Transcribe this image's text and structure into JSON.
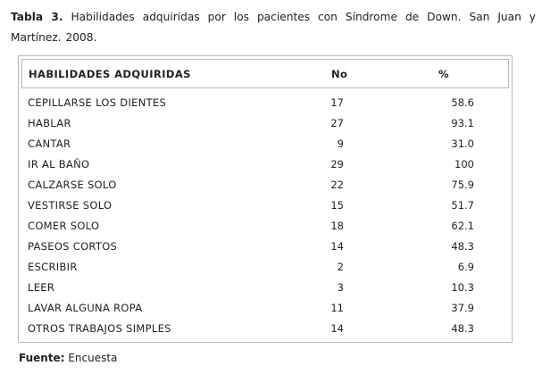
{
  "caption": {
    "label": "Tabla 3.",
    "text": "Habilidades adquiridas por los pacientes con Síndrome de Down. San Juan y Martínez. 2008."
  },
  "table": {
    "headers": [
      "HABILIDADES ADQUIRIDAS",
      "No",
      "%"
    ],
    "rows": [
      {
        "name": "CEPILLARSE LOS DIENTES",
        "no": "17",
        "pct": "58.6"
      },
      {
        "name": "HABLAR",
        "no": "27",
        "pct": "93.1"
      },
      {
        "name": "CANTAR",
        "no": "9",
        "pct": "31.0"
      },
      {
        "name": "IR AL BAÑO",
        "no": "29",
        "pct": "100"
      },
      {
        "name": "CALZARSE SOLO",
        "no": "22",
        "pct": "75.9"
      },
      {
        "name": "VESTIRSE SOLO",
        "no": "15",
        "pct": "51.7"
      },
      {
        "name": "COMER SOLO",
        "no": "18",
        "pct": "62.1"
      },
      {
        "name": "PASEOS CORTOS",
        "no": "14",
        "pct": "48.3"
      },
      {
        "name": "ESCRIBIR",
        "no": "2",
        "pct": "6.9"
      },
      {
        "name": "LEER",
        "no": "3",
        "pct": "10.3"
      },
      {
        "name": "LAVAR ALGUNA ROPA",
        "no": "11",
        "pct": "37.9"
      },
      {
        "name": "OTROS TRABAJOS SIMPLES",
        "no": "14",
        "pct": "48.3"
      }
    ]
  },
  "source": {
    "label": "Fuente:",
    "text": "Encuesta"
  }
}
